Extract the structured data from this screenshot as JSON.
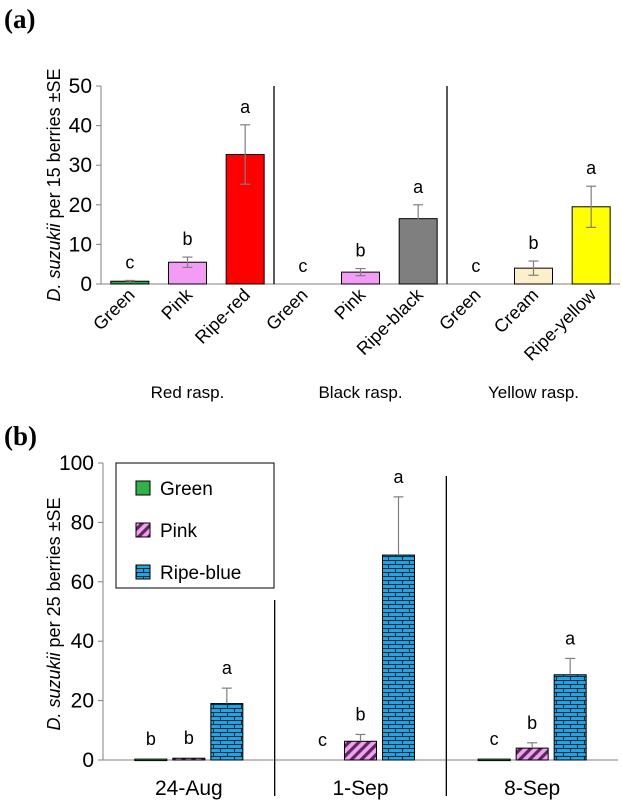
{
  "chart_data": [
    {
      "type": "bar",
      "panel_label": "(a)",
      "ylabel_italic": "D. suzukii",
      "ylabel_rest": " per 15 berries ±SE",
      "ylim": [
        0,
        50
      ],
      "yticks": [
        0,
        10,
        20,
        30,
        40,
        50
      ],
      "groups": [
        {
          "label": "Red rasp.",
          "bars": [
            {
              "category": "Green",
              "value": 0.7,
              "error": 0.2,
              "letter": "c",
              "color": "#33a050"
            },
            {
              "category": "Pink",
              "value": 5.5,
              "error": 1.3,
              "letter": "b",
              "color": "#f39cf5"
            },
            {
              "category": "Ripe-red",
              "value": 32.7,
              "error": 7.5,
              "letter": "a",
              "color": "#ff0000"
            }
          ]
        },
        {
          "label": "Black rasp.",
          "bars": [
            {
              "category": "Green",
              "value": 0,
              "error": 0,
              "letter": "c",
              "color": "#33a050"
            },
            {
              "category": "Pink",
              "value": 3.0,
              "error": 0.9,
              "letter": "b",
              "color": "#f39cf5"
            },
            {
              "category": "Ripe-black",
              "value": 16.5,
              "error": 3.5,
              "letter": "a",
              "color": "#7f7f7f"
            }
          ]
        },
        {
          "label": "Yellow rasp.",
          "bars": [
            {
              "category": "Green",
              "value": 0,
              "error": 0,
              "letter": "c",
              "color": "#33a050"
            },
            {
              "category": "Cream",
              "value": 4.0,
              "error": 1.8,
              "letter": "b",
              "color": "#fdefc9"
            },
            {
              "category": "Ripe-yellow",
              "value": 19.5,
              "error": 5.2,
              "letter": "a",
              "color": "#ffff00"
            }
          ]
        }
      ]
    },
    {
      "type": "bar",
      "panel_label": "(b)",
      "ylabel_italic": "D. suzukii",
      "ylabel_rest": " per 25 berries ±SE",
      "ylim": [
        0,
        100
      ],
      "yticks": [
        0,
        20,
        40,
        60,
        80,
        100
      ],
      "categories": [
        "24-Aug",
        "1-Sep",
        "8-Sep"
      ],
      "series": [
        {
          "name": "Green",
          "values": [
            0.3,
            0,
            0.3
          ],
          "errors": [
            0,
            0,
            0
          ],
          "letters": [
            "b",
            "c",
            "c"
          ],
          "color": "#33b24a",
          "pattern": "solid"
        },
        {
          "name": "Pink",
          "values": [
            0.6,
            6.3,
            4.0
          ],
          "errors": [
            0,
            2.3,
            1.8
          ],
          "letters": [
            "b",
            "b",
            "b"
          ],
          "color": "#f3a0f3",
          "pattern": "diagonal"
        },
        {
          "name": "Ripe-blue",
          "values": [
            19.0,
            69.0,
            28.7
          ],
          "errors": [
            5.2,
            19.6,
            5.5
          ],
          "letters": [
            "a",
            "a",
            "a"
          ],
          "color": "#1ea8e8",
          "pattern": "brick"
        }
      ]
    }
  ]
}
